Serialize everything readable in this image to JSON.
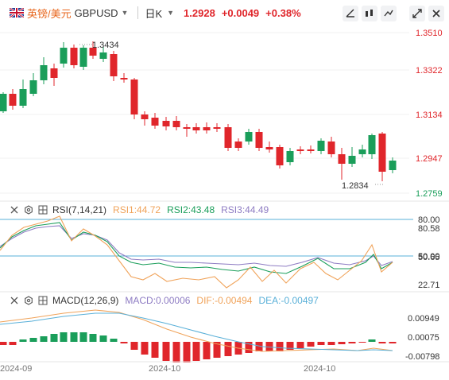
{
  "header": {
    "pair_label": "英镑/美元",
    "ticker": "GBPUSD",
    "timeframe": "日K",
    "price": "1.2928",
    "change": "+0.0049",
    "change_pct": "+0.38%",
    "tools": [
      "draw-tool-icon",
      "chart-type-icon",
      "indicator-icon",
      "fullscreen-icon",
      "close-icon"
    ]
  },
  "main": {
    "y_axis": [
      "1.3510",
      "1.3322",
      "1.3134",
      "1.2947",
      "1.2759"
    ],
    "high_annotation": "1.3434",
    "low_annotation": "1.2834"
  },
  "rsi": {
    "name": "RSI(7,14,21)",
    "rsi1": "RSI1:44.72",
    "rsi2": "RSI2:43.48",
    "rsi3": "RSI3:44.49",
    "y_axis": [
      "80.00",
      "80.58",
      "50.00",
      "50.65",
      "22.71"
    ]
  },
  "macd": {
    "name": "MACD(12,26,9)",
    "macd": "MACD:0.00006",
    "dif": "DIF:-0.00494",
    "dea": "DEA:-0.00497",
    "y_axis": [
      "0.00949",
      "0.00075",
      "-0.00798"
    ]
  },
  "x_axis": [
    "2024-09",
    "2024-10",
    "2024-10"
  ],
  "colors": {
    "up": "#e0262b",
    "down": "#1a9e5a",
    "orange": "#f0a35a",
    "blue": "#5ab0d8",
    "purple": "#8e7cc3"
  }
}
